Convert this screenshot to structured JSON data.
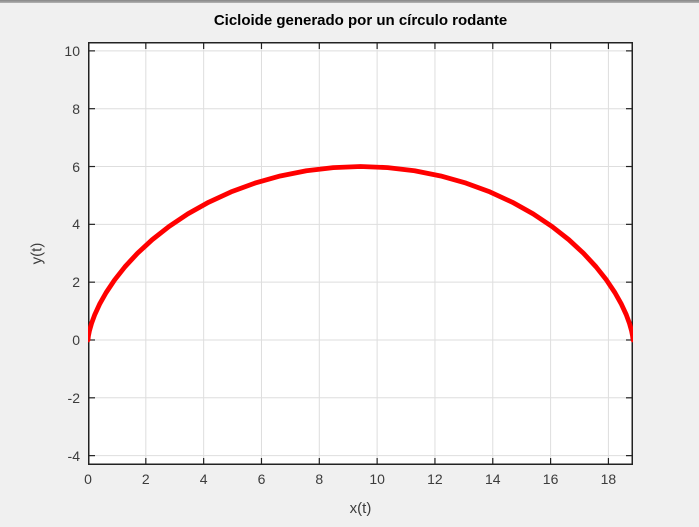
{
  "window": {
    "top_strip_colors": [
      "#878787",
      "#b4b4b4"
    ],
    "figure_background": "#F0F0F0"
  },
  "style": {
    "plot_background": "#FFFFFF",
    "grid_color": "#DEDEDE",
    "axis_color": "#222222",
    "tick_label_color": "#3C3C3C",
    "title_color": "#000000"
  },
  "chart_data": {
    "type": "line",
    "title": "Cicloide generado por un círculo rodante",
    "xlabel": "x(t)",
    "ylabel": "y(t)",
    "xlim": [
      0,
      18.85
    ],
    "ylim": [
      -4.324,
      10.307
    ],
    "x_ticks": [
      0,
      2,
      4,
      6,
      8,
      10,
      12,
      14,
      16,
      18
    ],
    "y_ticks": [
      -4,
      -2,
      0,
      2,
      4,
      6,
      8,
      10
    ],
    "grid": true,
    "legend": "none",
    "axis_equal": true,
    "series": [
      {
        "name": "cycloid",
        "color": "#FF0000",
        "line_width": 4.8,
        "x": [
          0,
          0.002,
          0.015,
          0.052,
          0.122,
          0.235,
          0.4,
          0.626,
          0.917,
          1.278,
          1.712,
          2.221,
          2.802,
          3.453,
          4.17,
          4.947,
          5.776,
          6.649,
          7.555,
          8.484,
          9.425,
          10.365,
          11.294,
          12.2,
          13.073,
          13.902,
          14.679,
          15.396,
          16.048,
          16.629,
          17.137,
          17.571,
          17.933,
          18.224,
          18.449,
          18.615,
          18.728,
          18.798,
          18.834,
          18.848,
          18.85
        ],
        "y": [
          0,
          0.037,
          0.147,
          0.327,
          0.573,
          0.879,
          1.237,
          1.638,
          2.073,
          2.531,
          3,
          3.469,
          3.927,
          4.362,
          4.763,
          5.121,
          5.427,
          5.673,
          5.853,
          5.963,
          6,
          5.963,
          5.853,
          5.673,
          5.427,
          5.121,
          4.763,
          4.362,
          3.927,
          3.469,
          3,
          2.531,
          2.073,
          1.638,
          1.237,
          0.879,
          0.573,
          0.327,
          0.147,
          0.037,
          0
        ]
      }
    ]
  }
}
